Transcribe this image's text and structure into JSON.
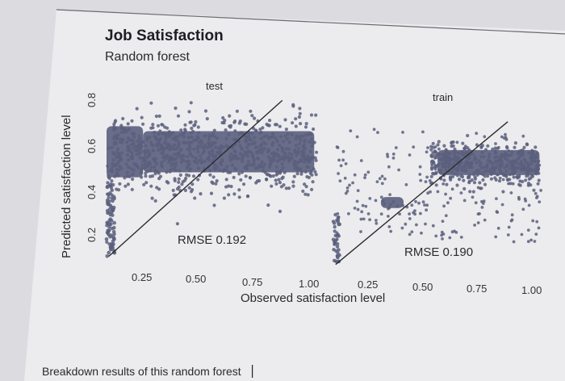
{
  "caption": "Breakdown results of this random forest",
  "chart_data": {
    "type": "scatter",
    "title": "Job Satisfaction",
    "subtitle": "Random forest",
    "xlabel": "Observed satisfaction level",
    "ylabel": "Predicted satisfaction level",
    "x_ticks": [
      "0.25",
      "0.50",
      "0.75",
      "1.00"
    ],
    "y_ticks": [
      "0.2",
      "0.4",
      "0.6",
      "0.8"
    ],
    "xlim": [
      0.09,
      1.02
    ],
    "ylim": [
      0.09,
      0.86
    ],
    "reference_line": "y = x",
    "point_color": "#5b5f7d",
    "panels": [
      {
        "label": "test",
        "rmse_text": "RMSE 0.192"
      },
      {
        "label": "train",
        "rmse_text": "RMSE 0.190"
      }
    ]
  }
}
